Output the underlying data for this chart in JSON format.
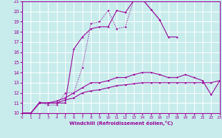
{
  "xlabel": "Windchill (Refroidissement éolien,°C)",
  "bg_color": "#c8ecec",
  "line_color": "#990099",
  "grid_color": "#ffffff",
  "xlim": [
    0,
    23
  ],
  "ylim": [
    10,
    21
  ],
  "xticks": [
    0,
    1,
    2,
    3,
    4,
    5,
    6,
    7,
    8,
    9,
    10,
    11,
    12,
    13,
    14,
    15,
    16,
    17,
    18,
    19,
    20,
    21,
    22,
    23
  ],
  "yticks": [
    10,
    11,
    12,
    13,
    14,
    15,
    16,
    17,
    18,
    19,
    20,
    21
  ],
  "lines": [
    {
      "x": [
        0,
        1,
        2,
        3,
        4,
        5,
        6,
        7,
        8,
        9,
        10,
        11,
        12,
        13,
        14,
        15,
        16,
        17,
        18
      ],
      "y": [
        10,
        10,
        11,
        11,
        11,
        11,
        16.3,
        17.5,
        18.3,
        18.5,
        18.5,
        20.1,
        19.9,
        21.1,
        21.2,
        20.2,
        19.2,
        17.5,
        17.5
      ],
      "style": "solid",
      "marker": "+"
    },
    {
      "x": [
        0,
        1,
        2,
        3,
        4,
        5,
        6,
        7,
        8,
        9,
        10,
        11,
        12,
        13,
        14,
        15,
        16
      ],
      "y": [
        10,
        10,
        11.1,
        10.8,
        10.8,
        12.0,
        12.0,
        14.5,
        18.8,
        19.0,
        20.1,
        18.3,
        18.5,
        21.2,
        21.2,
        20.2,
        19.2
      ],
      "style": "dotted",
      "marker": "+"
    },
    {
      "x": [
        0,
        1,
        2,
        3,
        4,
        5,
        6,
        7,
        8,
        9,
        10,
        11,
        12,
        13,
        14,
        15,
        16,
        17,
        18,
        19,
        20,
        21,
        22,
        23
      ],
      "y": [
        10,
        10,
        11,
        11,
        11.2,
        11.5,
        12.0,
        12.5,
        13.0,
        13.0,
        13.2,
        13.5,
        13.5,
        13.8,
        14.0,
        14.0,
        13.8,
        13.5,
        13.5,
        13.8,
        13.5,
        13.2,
        11.8,
        13.2
      ],
      "style": "solid",
      "marker": "+"
    },
    {
      "x": [
        0,
        1,
        2,
        3,
        4,
        5,
        6,
        7,
        8,
        9,
        10,
        11,
        12,
        13,
        14,
        15,
        16,
        17,
        18,
        19,
        20,
        21,
        22,
        23
      ],
      "y": [
        10,
        10,
        11,
        11,
        11,
        11.3,
        11.5,
        12.0,
        12.2,
        12.3,
        12.5,
        12.7,
        12.8,
        12.9,
        13.0,
        13.0,
        13.0,
        13.0,
        13.0,
        13.0,
        13.0,
        13.0,
        13.0,
        13.2
      ],
      "style": "solid",
      "marker": "+"
    }
  ]
}
